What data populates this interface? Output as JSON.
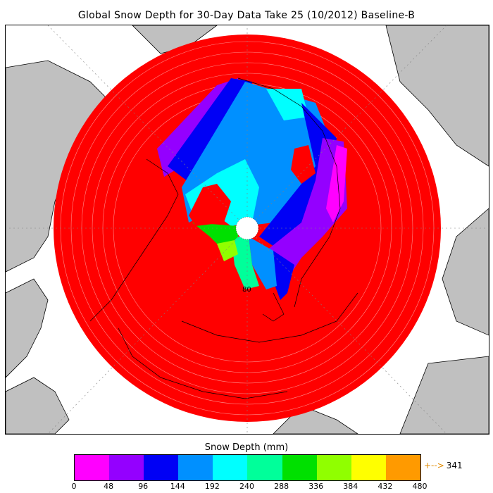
{
  "title": "Global Snow Depth for 30-Day Data Take 25 (10/2012) Baseline-B",
  "map": {
    "lat_label": "80",
    "colors": {
      "ocean": "#ffffff",
      "land": "#c0c0c0",
      "snow_max": "#ff0000",
      "coast": "#000000"
    }
  },
  "colorbar": {
    "label": "Snow Depth (mm)",
    "ticks": [
      "0",
      "48",
      "96",
      "144",
      "192",
      "240",
      "288",
      "336",
      "384",
      "432",
      "480"
    ],
    "colors": [
      "#ff00ff",
      "#9400ff",
      "#0000f5",
      "#0090ff",
      "#00ffff",
      "#00ff9a",
      "#00e000",
      "#90ff00",
      "#ffff00",
      "#ff9a00"
    ],
    "max_label": "341",
    "max_arrow": "+-->"
  }
}
